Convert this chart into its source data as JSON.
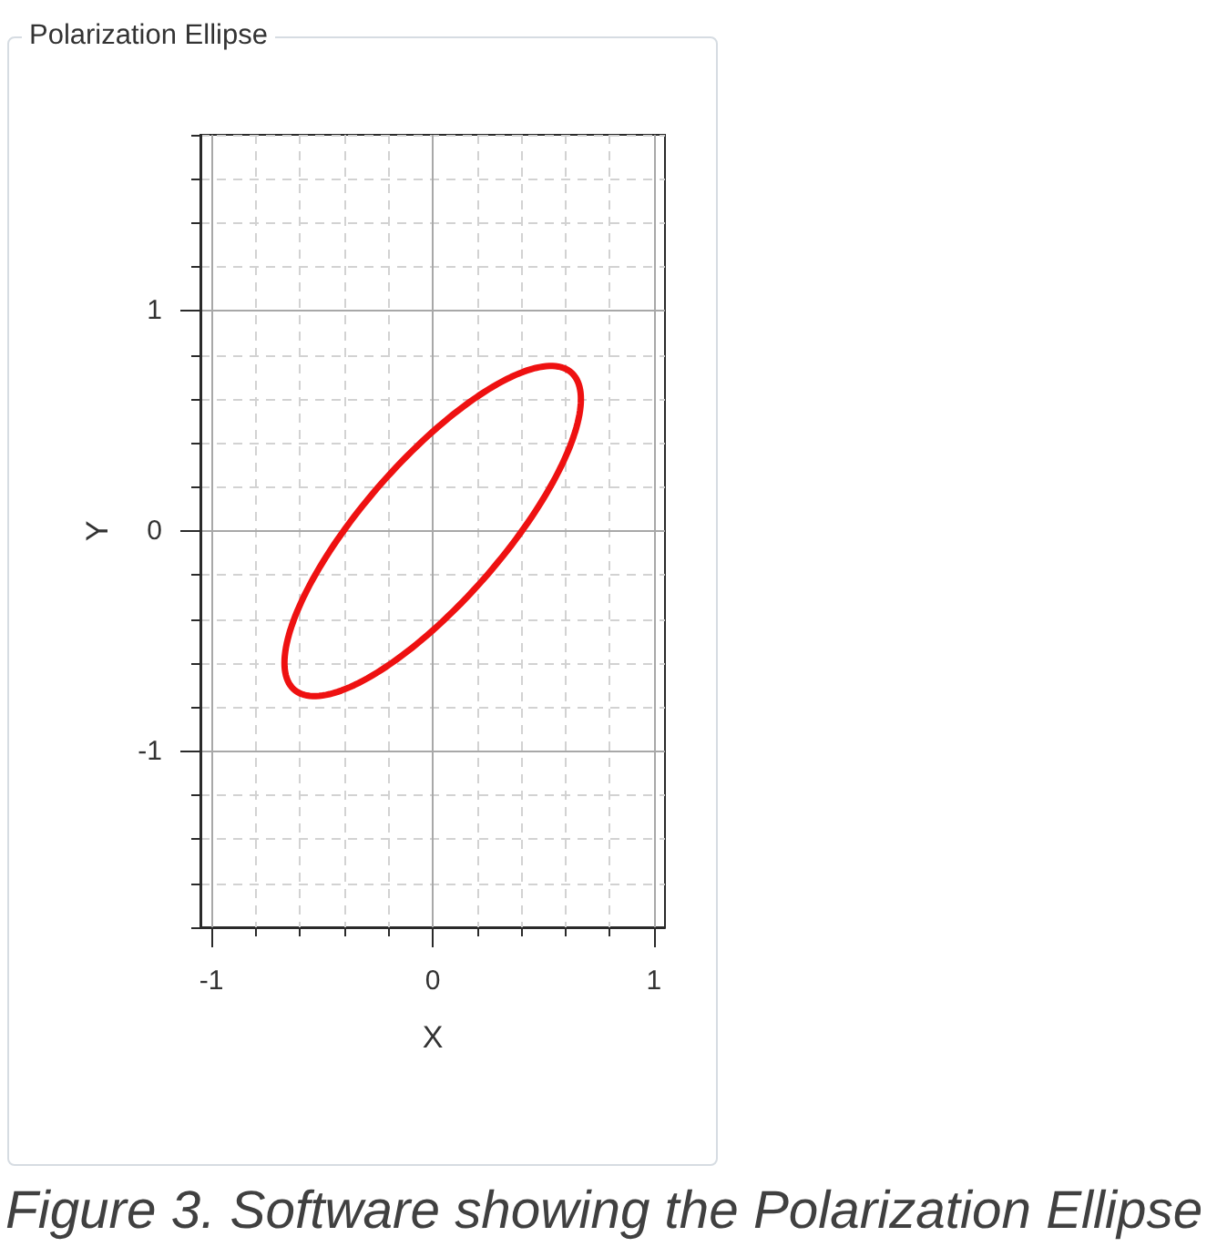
{
  "chart_data": {
    "type": "line",
    "title": "Polarization Ellipse",
    "xlabel": "X",
    "ylabel": "Y",
    "annotations": [
      "Figure 3. Software showing the Polarization Ellipse"
    ],
    "xlim": [
      -1.05,
      1.05
    ],
    "ylim": [
      -1.8,
      1.8
    ],
    "xticks": [
      -1,
      {
        "value": -0.8,
        "label": null
      },
      {
        "value": -0.6,
        "label": null
      },
      {
        "value": -0.4,
        "label": null
      },
      {
        "value": -0.2,
        "label": null
      },
      0,
      {
        "value": 0.2,
        "label": null
      },
      {
        "value": 0.4,
        "label": null
      },
      {
        "value": 0.6,
        "label": null
      },
      {
        "value": 0.8,
        "label": null
      },
      1
    ],
    "yticks": [
      {
        "value": -1.8,
        "label": null
      },
      {
        "value": -1.6,
        "label": null
      },
      {
        "value": -1.4,
        "label": null
      },
      {
        "value": -1.2,
        "label": null
      },
      -1,
      {
        "value": -0.8,
        "label": null
      },
      {
        "value": -0.6,
        "label": null
      },
      {
        "value": -0.4,
        "label": null
      },
      {
        "value": -0.2,
        "label": null
      },
      0,
      {
        "value": 0.2,
        "label": null
      },
      {
        "value": 0.4,
        "label": null
      },
      {
        "value": 0.6,
        "label": null
      },
      {
        "value": 0.8,
        "label": null
      },
      1,
      {
        "value": 1.2,
        "label": null
      },
      {
        "value": 1.4,
        "label": null
      },
      {
        "value": 1.6,
        "label": null
      },
      {
        "value": 1.8,
        "label": null
      }
    ],
    "grid": true
  }
}
